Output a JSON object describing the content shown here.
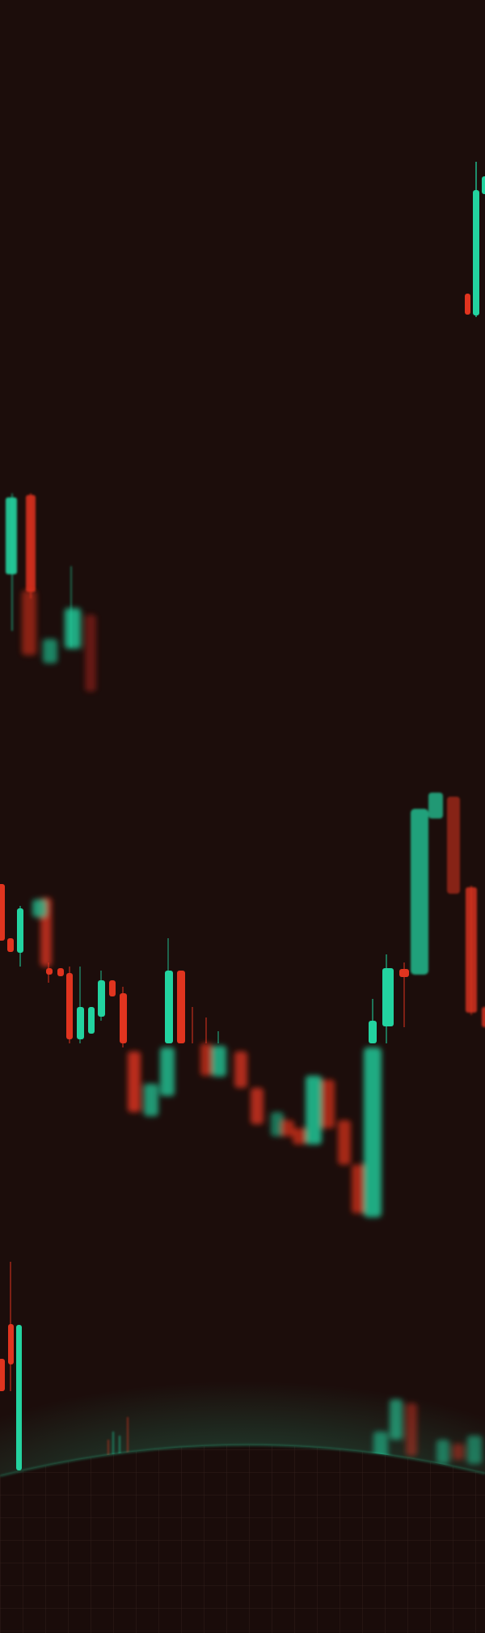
{
  "background": {
    "color": "#1c0d0b",
    "candle_up_color": "#23d3a0",
    "candle_down_color": "#e0341f",
    "glow_color": "#2fd19a",
    "grid_color": "#3a2622",
    "floor_color": "#1a0c0a"
  }
}
